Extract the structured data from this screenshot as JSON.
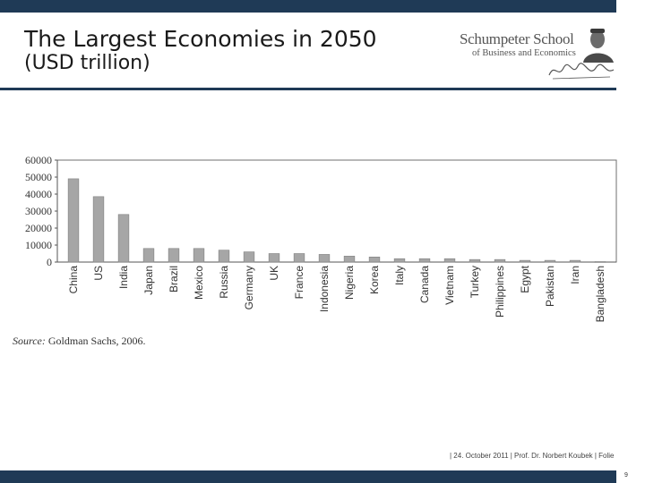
{
  "slide": {
    "title": "The Largest Economies in 2050",
    "subtitle": "(USD trillion)",
    "logo_name": "Schumpeter School",
    "logo_sub": "of Business and Economics",
    "source_label": "Source:",
    "source_text": "Goldman Sachs, 2006.",
    "footer": "| 24. October 2011 | Prof. Dr. Norbert Koubek | Folie",
    "page_number": "9",
    "colors": {
      "brand": "#1f3a56",
      "bar": "#a6a6a6",
      "bar_edge": "#7f7f7f"
    }
  },
  "chart_data": {
    "type": "bar",
    "title": "",
    "xlabel": "",
    "ylabel": "",
    "ylim": [
      0,
      60000
    ],
    "yticks": [
      0,
      10000,
      20000,
      30000,
      40000,
      50000,
      60000
    ],
    "grid": false,
    "categories": [
      "China",
      "US",
      "India",
      "Japan",
      "Brazil",
      "Mexico",
      "Russia",
      "Germany",
      "UK",
      "France",
      "Indonesia",
      "Nigeria",
      "Korea",
      "Italy",
      "Canada",
      "Vietnam",
      "Turkey",
      "Philippines",
      "Egypt",
      "Pakistan",
      "Iran",
      "Bangladesh"
    ],
    "values": [
      49000,
      38500,
      28000,
      8000,
      8000,
      8000,
      7000,
      6000,
      5000,
      5000,
      4500,
      3500,
      3000,
      2000,
      2000,
      2000,
      1500,
      1500,
      1000,
      1000,
      1000,
      300
    ]
  }
}
